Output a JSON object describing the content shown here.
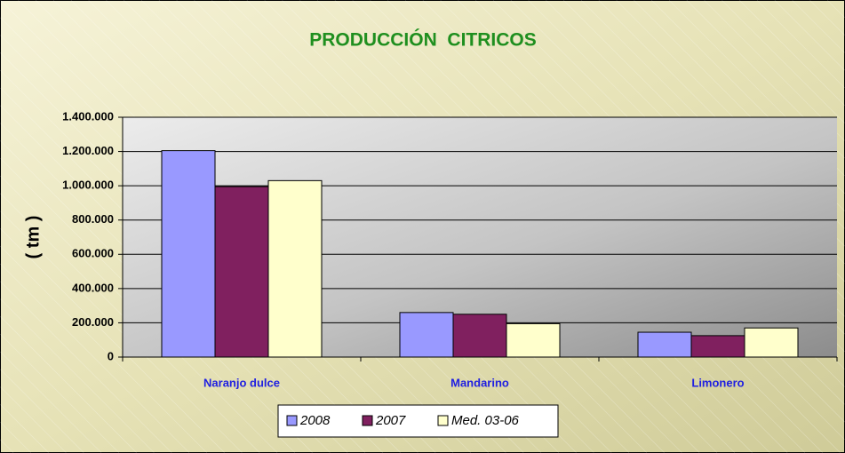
{
  "chart_data": {
    "type": "bar",
    "title": "PRODUCCIÓN  CITRICOS",
    "y_label": "( tm )",
    "categories": [
      "Naranjo dulce",
      "Mandarino",
      "Limonero"
    ],
    "series": [
      {
        "name": "2008",
        "color": "#9999ff",
        "values": [
          1205000,
          260000,
          145000
        ]
      },
      {
        "name": "2007",
        "color": "#80205f",
        "values": [
          995000,
          250000,
          125000
        ]
      },
      {
        "name": "Med. 03-06",
        "color": "#ffffcc",
        "values": [
          1030000,
          195000,
          170000
        ]
      }
    ],
    "ylim": [
      0,
      1400000
    ],
    "yticks": [
      0,
      {
        "value": 200000,
        "label": "200.000"
      },
      {
        "value": 400000,
        "label": "400.000"
      },
      {
        "value": 600000,
        "label": "600.000"
      },
      {
        "value": 800000,
        "label": "800.000"
      },
      {
        "value": 1000000,
        "label": "1.000.000"
      },
      {
        "value": 1200000,
        "label": "1.200.000"
      },
      {
        "value": 1400000,
        "label": "1.400.000"
      }
    ],
    "grid": true,
    "legend": "bottom"
  }
}
